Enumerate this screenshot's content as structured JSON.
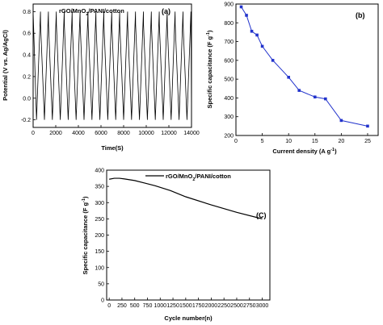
{
  "chart_data": [
    {
      "panel_label": "(a)",
      "type": "line",
      "legend": "rGO/MnO2/PANI/cotton",
      "xlabel": "Time(S)",
      "ylabel": "Potential (V vs. Ag/AgCl)",
      "xlim": [
        0,
        14000
      ],
      "ylim": [
        -0.2,
        0.8
      ],
      "xticks": [
        "0",
        "2000",
        "4000",
        "6000",
        "8000",
        "10000",
        "12000",
        "14000"
      ],
      "yticks": [
        "-0.2",
        "0.0",
        "0.2",
        "0.4",
        "0.6",
        "0.8"
      ],
      "cycles": 20,
      "cycle_period": 700,
      "series": [
        {
          "v_min": -0.2,
          "v_max": 0.8
        }
      ]
    },
    {
      "panel_label": "(b)",
      "type": "line",
      "xlabel": "Current density (A g-1)",
      "ylabel": "Specific capacitance (F g-1)",
      "xlim": [
        0,
        27
      ],
      "ylim": [
        200,
        900
      ],
      "xticks": [
        "0",
        "5",
        "10",
        "15",
        "20",
        "25"
      ],
      "yticks": [
        "200",
        "300",
        "400",
        "500",
        "600",
        "700",
        "800",
        "900"
      ],
      "color": "#2233cc",
      "series": [
        {
          "x": [
            1,
            2,
            3,
            4,
            5,
            7,
            10,
            12,
            15,
            17,
            20,
            25
          ],
          "y": [
            885,
            840,
            755,
            735,
            675,
            600,
            510,
            440,
            405,
            395,
            280,
            250
          ]
        }
      ]
    },
    {
      "panel_label": "(C)",
      "type": "line",
      "legend": "rGO/MnO2/PANI/cotton",
      "xlabel": "Cycle number(n)",
      "ylabel": "Specific capacitance (F g-1)",
      "xlim": [
        0,
        3000
      ],
      "ylim": [
        0,
        400
      ],
      "xticks": [
        "0",
        "250",
        "500",
        "750",
        "1000",
        "1250",
        "1500",
        "1750",
        "2000",
        "2250",
        "2500",
        "2750",
        "3000"
      ],
      "yticks": [
        "0",
        "50",
        "100",
        "150",
        "200",
        "250",
        "300",
        "350",
        "400"
      ],
      "series": [
        {
          "x": [
            0,
            100,
            200,
            300,
            500,
            700,
            900,
            1200,
            1500,
            2000,
            2500,
            3000
          ],
          "y": [
            372,
            375,
            375,
            373,
            368,
            360,
            352,
            337,
            318,
            293,
            270,
            250
          ]
        }
      ]
    }
  ]
}
